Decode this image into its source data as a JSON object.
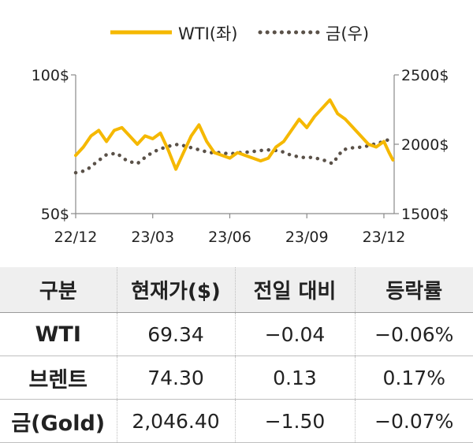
{
  "chart_data": {
    "type": "line",
    "legend": {
      "placement": "top-center",
      "entries": [
        "WTI(좌)",
        "금(우)"
      ]
    },
    "x_tick_labels": [
      "22/12",
      "23/03",
      "23/06",
      "23/09",
      "23/12"
    ],
    "y_left": {
      "ticks": [
        "100$",
        "50$"
      ],
      "range": [
        50,
        100
      ]
    },
    "y_right": {
      "ticks": [
        "2500$",
        "2000$",
        "1500$"
      ],
      "range": [
        1500,
        2500
      ]
    },
    "grid": false,
    "x_range": [
      0,
      12.4
    ],
    "series": [
      {
        "name": "WTI(좌)",
        "axis": "left",
        "style": "solid",
        "color": "#F5B800",
        "x": [
          0,
          0.3,
          0.6,
          0.9,
          1.2,
          1.5,
          1.8,
          2.1,
          2.4,
          2.7,
          3.0,
          3.3,
          3.6,
          3.9,
          4.2,
          4.5,
          4.8,
          5.1,
          5.4,
          5.7,
          6.0,
          6.3,
          6.6,
          6.9,
          7.2,
          7.5,
          7.8,
          8.1,
          8.4,
          8.7,
          9.0,
          9.3,
          9.6,
          9.9,
          10.2,
          10.5,
          10.8,
          11.1,
          11.4,
          11.7,
          12.0,
          12.2,
          12.35
        ],
        "y": [
          71,
          74,
          78,
          80,
          76,
          80,
          81,
          78,
          75,
          78,
          77,
          79,
          73,
          66,
          72,
          78,
          82,
          76,
          72,
          71,
          70,
          72,
          71,
          70,
          69,
          70,
          74,
          76,
          80,
          84,
          81,
          85,
          88,
          91,
          86,
          84,
          81,
          78,
          75,
          74,
          76,
          72,
          69.34
        ]
      },
      {
        "name": "금(우)",
        "axis": "right",
        "style": "dotted",
        "color": "#5A5148",
        "x": [
          0,
          0.4,
          0.8,
          1.2,
          1.6,
          2.0,
          2.4,
          2.8,
          3.2,
          3.6,
          4.0,
          4.4,
          4.8,
          5.2,
          5.6,
          6.0,
          6.4,
          6.8,
          7.2,
          7.6,
          8.0,
          8.4,
          8.8,
          9.2,
          9.6,
          10.0,
          10.4,
          10.8,
          11.2,
          11.6,
          12.0,
          12.35
        ],
        "y": [
          1795,
          1810,
          1870,
          1925,
          1935,
          1880,
          1860,
          1920,
          1960,
          1985,
          2000,
          1980,
          1960,
          1940,
          1940,
          1930,
          1940,
          1945,
          1955,
          1960,
          1950,
          1920,
          1905,
          1905,
          1890,
          1860,
          1960,
          1975,
          1980,
          2000,
          2020,
          2046.4
        ]
      }
    ]
  },
  "table": {
    "headers": [
      "구분",
      "현재가($)",
      "전일 대비",
      "등락률"
    ],
    "rows": [
      [
        "WTI",
        "69.34",
        "−0.04",
        "−0.06%"
      ],
      [
        "브렌트",
        "74.30",
        "0.13",
        "0.17%"
      ],
      [
        "금(Gold)",
        "2,046.40",
        "−1.50",
        "−0.07%"
      ]
    ]
  }
}
